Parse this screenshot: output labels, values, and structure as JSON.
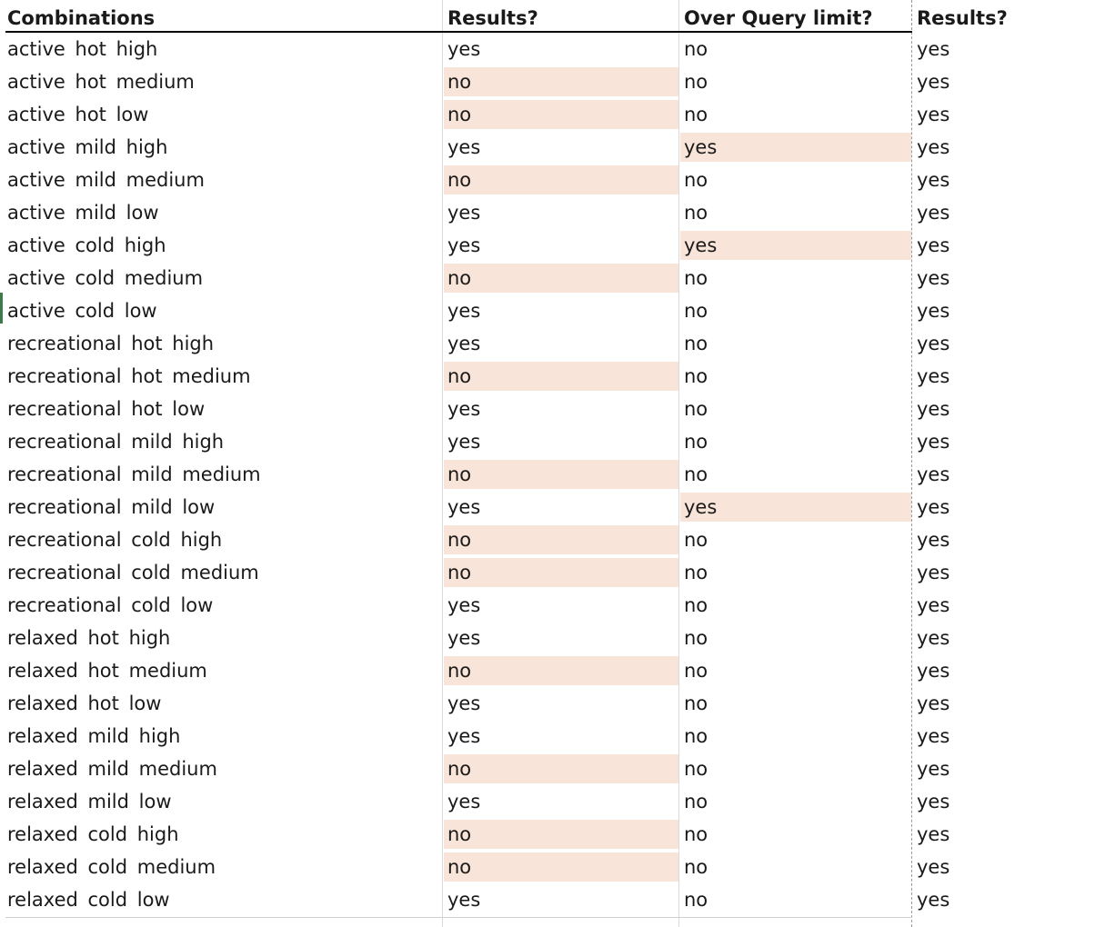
{
  "headers": {
    "combinations": "Combinations",
    "results_1": "Results?",
    "over_query_limit": "Over Query limit?",
    "results_2": "Results?"
  },
  "colors": {
    "highlight": "#f8e4d8",
    "header_rule": "#000000"
  },
  "rows": [
    {
      "combination": "active  hot high",
      "results1": "yes",
      "over": "no",
      "results2": "yes",
      "hl_results1": false,
      "hl_over": false
    },
    {
      "combination": "active  hot medium",
      "results1": "no",
      "over": "no",
      "results2": "yes",
      "hl_results1": true,
      "hl_over": false
    },
    {
      "combination": "active  hot low",
      "results1": "no",
      "over": "no",
      "results2": "yes",
      "hl_results1": true,
      "hl_over": false
    },
    {
      "combination": "active  mild high",
      "results1": "yes",
      "over": "yes",
      "results2": "yes",
      "hl_results1": false,
      "hl_over": true
    },
    {
      "combination": "active  mild medium",
      "results1": "no",
      "over": "no",
      "results2": "yes",
      "hl_results1": true,
      "hl_over": false
    },
    {
      "combination": "active  mild low",
      "results1": "yes",
      "over": "no",
      "results2": "yes",
      "hl_results1": false,
      "hl_over": false
    },
    {
      "combination": "active  cold high",
      "results1": "yes",
      "over": "yes",
      "results2": "yes",
      "hl_results1": false,
      "hl_over": true
    },
    {
      "combination": "active  cold medium",
      "results1": "no",
      "over": "no",
      "results2": "yes",
      "hl_results1": true,
      "hl_over": false
    },
    {
      "combination": "active  cold low",
      "results1": "yes",
      "over": "no",
      "results2": "yes",
      "hl_results1": false,
      "hl_over": false
    },
    {
      "combination": "recreational  hot high",
      "results1": "yes",
      "over": "no",
      "results2": "yes",
      "hl_results1": false,
      "hl_over": false
    },
    {
      "combination": "recreational  hot medium",
      "results1": "no",
      "over": "no",
      "results2": "yes",
      "hl_results1": true,
      "hl_over": false
    },
    {
      "combination": "recreational  hot low",
      "results1": "yes",
      "over": "no",
      "results2": "yes",
      "hl_results1": false,
      "hl_over": false
    },
    {
      "combination": "recreational  mild high",
      "results1": "yes",
      "over": "no",
      "results2": "yes",
      "hl_results1": false,
      "hl_over": false
    },
    {
      "combination": "recreational  mild medium",
      "results1": "no",
      "over": "no",
      "results2": "yes",
      "hl_results1": true,
      "hl_over": false
    },
    {
      "combination": "recreational  mild low",
      "results1": "yes",
      "over": "yes",
      "results2": "yes",
      "hl_results1": false,
      "hl_over": true
    },
    {
      "combination": "recreational  cold high",
      "results1": "no",
      "over": "no",
      "results2": "yes",
      "hl_results1": true,
      "hl_over": false
    },
    {
      "combination": "recreational  cold medium",
      "results1": "no",
      "over": "no",
      "results2": "yes",
      "hl_results1": true,
      "hl_over": false
    },
    {
      "combination": "recreational  cold low",
      "results1": "yes",
      "over": "no",
      "results2": "yes",
      "hl_results1": false,
      "hl_over": false
    },
    {
      "combination": "relaxed  hot high",
      "results1": "yes",
      "over": "no",
      "results2": "yes",
      "hl_results1": false,
      "hl_over": false
    },
    {
      "combination": "relaxed  hot medium",
      "results1": "no",
      "over": "no",
      "results2": "yes",
      "hl_results1": true,
      "hl_over": false
    },
    {
      "combination": "relaxed  hot low",
      "results1": "yes",
      "over": "no",
      "results2": "yes",
      "hl_results1": false,
      "hl_over": false
    },
    {
      "combination": "relaxed  mild high",
      "results1": "yes",
      "over": "no",
      "results2": "yes",
      "hl_results1": false,
      "hl_over": false
    },
    {
      "combination": "relaxed  mild medium",
      "results1": "no",
      "over": "no",
      "results2": "yes",
      "hl_results1": true,
      "hl_over": false
    },
    {
      "combination": "relaxed  mild low",
      "results1": "yes",
      "over": "no",
      "results2": "yes",
      "hl_results1": false,
      "hl_over": false
    },
    {
      "combination": "relaxed  cold high",
      "results1": "no",
      "over": "no",
      "results2": "yes",
      "hl_results1": true,
      "hl_over": false
    },
    {
      "combination": "relaxed  cold medium",
      "results1": "no",
      "over": "no",
      "results2": "yes",
      "hl_results1": true,
      "hl_over": false
    },
    {
      "combination": "relaxed  cold low",
      "results1": "yes",
      "over": "no",
      "results2": "yes",
      "hl_results1": false,
      "hl_over": false
    }
  ]
}
